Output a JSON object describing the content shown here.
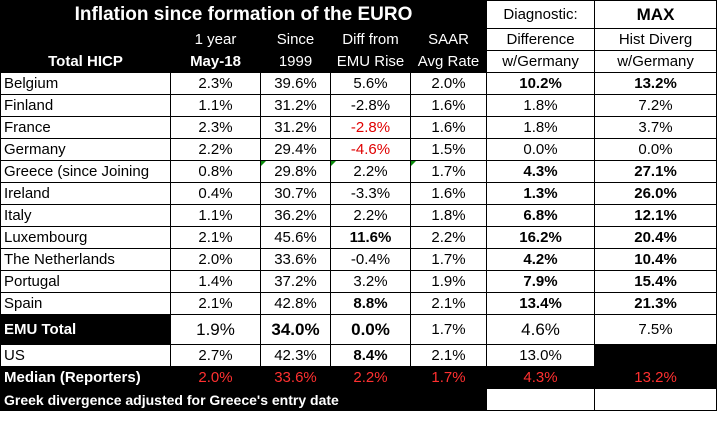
{
  "title": "Inflation since formation of the EURO",
  "diagnostic_header": "Diagnostic:",
  "max_header": "MAX",
  "columns": {
    "label": "Total HICP",
    "one_year_top": "1 year",
    "one_year_bottom": "May-18",
    "since_top": "Since",
    "since_bottom": "1999",
    "diff_top": "Diff from",
    "diff_bottom": "EMU Rise",
    "saar_top": "SAAR",
    "saar_bottom": "Avg Rate",
    "diag_top": "Difference",
    "diag_bottom": "w/Germany",
    "max_top": "Hist Diverg",
    "max_bottom": "w/Germany"
  },
  "rows": [
    {
      "country": "Belgium",
      "one_year": "2.3%",
      "since": "39.6%",
      "diff": "5.6%",
      "saar": "2.0%",
      "diag": "10.2%",
      "max": "13.2%"
    },
    {
      "country": "Finland",
      "one_year": "1.1%",
      "since": "31.2%",
      "diff": "-2.8%",
      "saar": "1.6%",
      "diag": "1.8%",
      "max": "7.2%"
    },
    {
      "country": "France",
      "one_year": "2.3%",
      "since": "31.2%",
      "diff": "-2.8%",
      "saar": "1.6%",
      "diag": "1.8%",
      "max": "3.7%"
    },
    {
      "country": "Germany",
      "one_year": "2.2%",
      "since": "29.4%",
      "diff": "-4.6%",
      "saar": "1.5%",
      "diag": "0.0%",
      "max": "0.0%"
    },
    {
      "country": "Greece (since Joining",
      "one_year": "0.8%",
      "since": "29.8%",
      "diff": "2.2%",
      "saar": "1.7%",
      "diag": "4.3%",
      "max": "27.1%"
    },
    {
      "country": "Ireland",
      "one_year": "0.4%",
      "since": "30.7%",
      "diff": "-3.3%",
      "saar": "1.6%",
      "diag": "1.3%",
      "max": "26.0%"
    },
    {
      "country": "Italy",
      "one_year": "1.1%",
      "since": "36.2%",
      "diff": "2.2%",
      "saar": "1.8%",
      "diag": "6.8%",
      "max": "12.1%"
    },
    {
      "country": "Luxembourg",
      "one_year": "2.1%",
      "since": "45.6%",
      "diff": "11.6%",
      "saar": "2.2%",
      "diag": "16.2%",
      "max": "20.4%"
    },
    {
      "country": "The Netherlands",
      "one_year": "2.0%",
      "since": "33.6%",
      "diff": "-0.4%",
      "saar": "1.7%",
      "diag": "4.2%",
      "max": "10.4%"
    },
    {
      "country": "Portugal",
      "one_year": "1.4%",
      "since": "37.2%",
      "diff": "3.2%",
      "saar": "1.9%",
      "diag": "7.9%",
      "max": "15.4%"
    },
    {
      "country": "Spain",
      "one_year": "2.1%",
      "since": "42.8%",
      "diff": "8.8%",
      "saar": "2.1%",
      "diag": "13.4%",
      "max": "21.3%"
    }
  ],
  "emu": {
    "label": "EMU Total",
    "one_year": "1.9%",
    "since": "34.0%",
    "diff": "0.0%",
    "saar": "1.7%",
    "diag": "4.6%",
    "max": "7.5%"
  },
  "us": {
    "label": "US",
    "one_year": "2.7%",
    "since": "42.3%",
    "diff": "8.4%",
    "saar": "2.1%",
    "diag": "13.0%"
  },
  "median": {
    "label": "Median (Reporters)",
    "one_year": "2.0%",
    "since": "33.6%",
    "diff": "2.2%",
    "saar": "1.7%",
    "diag": "4.3%",
    "max": "13.2%"
  },
  "footnote": "Greek divergence adjusted for Greece's entry date",
  "colors": {
    "negative": "#e00000",
    "median_text": "#ff3030",
    "header_bg": "#000000"
  }
}
